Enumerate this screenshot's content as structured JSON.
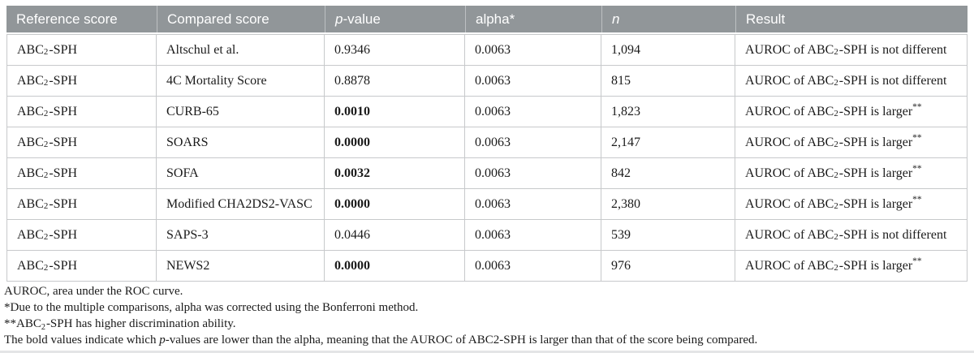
{
  "colors": {
    "page_bg": "#ffffff",
    "header_bg": "#919699",
    "header_text": "#ffffff",
    "header_divider": "rgba(255,255,255,0.4)",
    "border": "#c7c9cb",
    "text": "#1b1b1b",
    "bottom_strip": "#e4e5e6"
  },
  "table": {
    "headers": [
      "Reference score",
      "Compared score",
      "_p_-value",
      "alpha*",
      "_n_",
      "Result"
    ],
    "rows": [
      {
        "cells": [
          "ABC~2~-SPH",
          "Altschul et al.",
          "0.9346",
          "0.0063",
          "1,094",
          "AUROC of ABC~2~-SPH is not different"
        ],
        "p_bold": false
      },
      {
        "cells": [
          "ABC~2~-SPH",
          "4C Mortality Score",
          "0.8878",
          "0.0063",
          "815",
          "AUROC of ABC~2~-SPH is not different"
        ],
        "p_bold": false
      },
      {
        "cells": [
          "ABC~2~-SPH",
          "CURB-65",
          "0.0010",
          "0.0063",
          "1,823",
          "AUROC of ABC~2~-SPH is larger^**^"
        ],
        "p_bold": true
      },
      {
        "cells": [
          "ABC~2~-SPH",
          "SOARS",
          "0.0000",
          "0.0063",
          "2,147",
          "AUROC of ABC~2~-SPH is larger^**^"
        ],
        "p_bold": true
      },
      {
        "cells": [
          "ABC~2~-SPH",
          "SOFA",
          "0.0032",
          "0.0063",
          "842",
          "AUROC of ABC~2~-SPH is larger^**^"
        ],
        "p_bold": true
      },
      {
        "cells": [
          "ABC~2~-SPH",
          "Modified CHA2DS2-VASC",
          "0.0000",
          "0.0063",
          "2,380",
          "AUROC of ABC~2~-SPH is larger^**^"
        ],
        "p_bold": true
      },
      {
        "cells": [
          "ABC~2~-SPH",
          "SAPS-3",
          "0.0446",
          "0.0063",
          "539",
          "AUROC of ABC~2~-SPH is not different"
        ],
        "p_bold": false
      },
      {
        "cells": [
          "ABC~2~-SPH",
          "NEWS2",
          "0.0000",
          "0.0063",
          "976",
          "AUROC of ABC~2~-SPH is larger^**^"
        ],
        "p_bold": true
      }
    ]
  },
  "footnotes": [
    "AUROC, area under the ROC curve.",
    "*Due to the multiple comparisons, alpha was corrected using the Bonferroni method.",
    "**ABC~2~-SPH has higher discrimination ability.",
    "The bold values indicate which _p_-values are lower than the alpha, meaning that the AUROC of ABC2-SPH is larger than that of the score being compared."
  ]
}
